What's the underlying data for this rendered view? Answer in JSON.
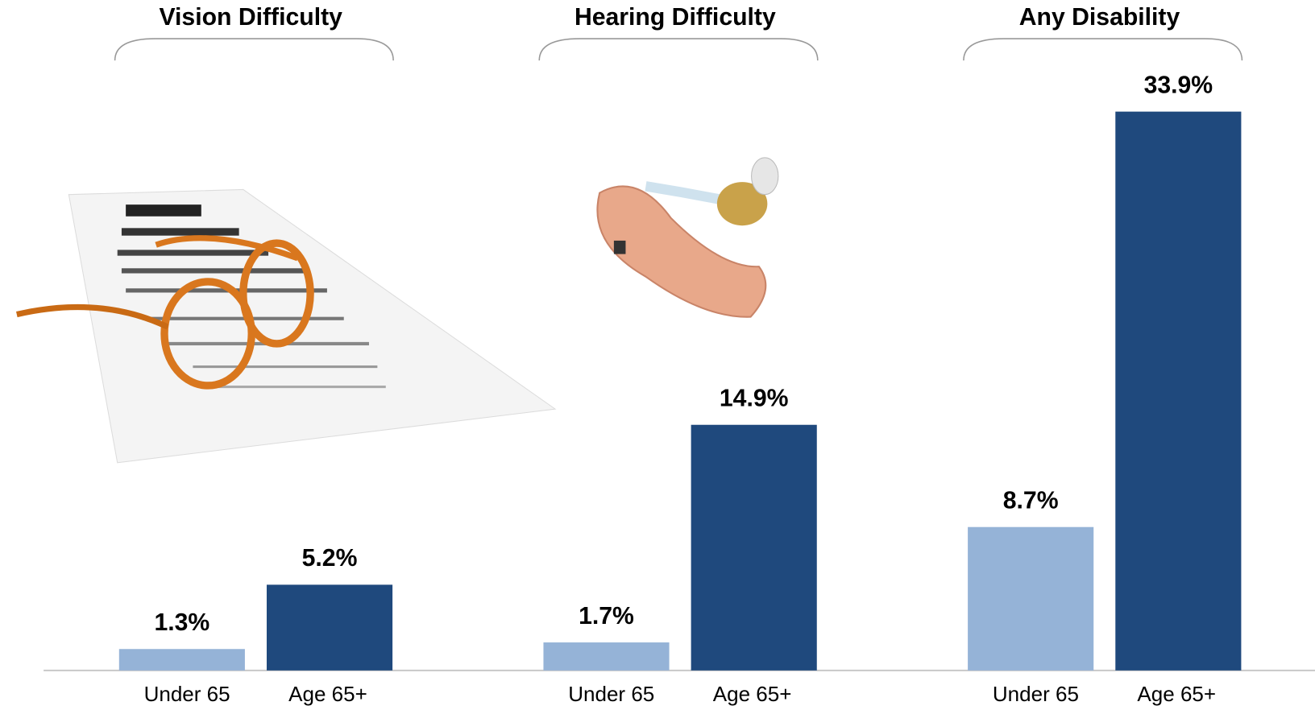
{
  "chart_data": {
    "type": "bar",
    "colors": [
      "#95b3d7",
      "#1f497d"
    ],
    "groups": [
      {
        "title": "Vision Difficulty",
        "categories": [
          "Under 65",
          "Age 65+"
        ],
        "values": [
          1.3,
          5.2
        ],
        "value_labels": [
          "1.3%",
          "5.2%"
        ]
      },
      {
        "title": "Hearing Difficulty",
        "categories": [
          "Under 65",
          "Age 65+"
        ],
        "values": [
          1.7,
          14.9
        ],
        "value_labels": [
          "1.7%",
          "14.9%"
        ]
      },
      {
        "title": "Any Disability",
        "categories": [
          "Under 65",
          "Age 65+"
        ],
        "values": [
          8.7,
          33.9
        ],
        "value_labels": [
          "8.7%",
          "33.9%"
        ]
      }
    ]
  }
}
